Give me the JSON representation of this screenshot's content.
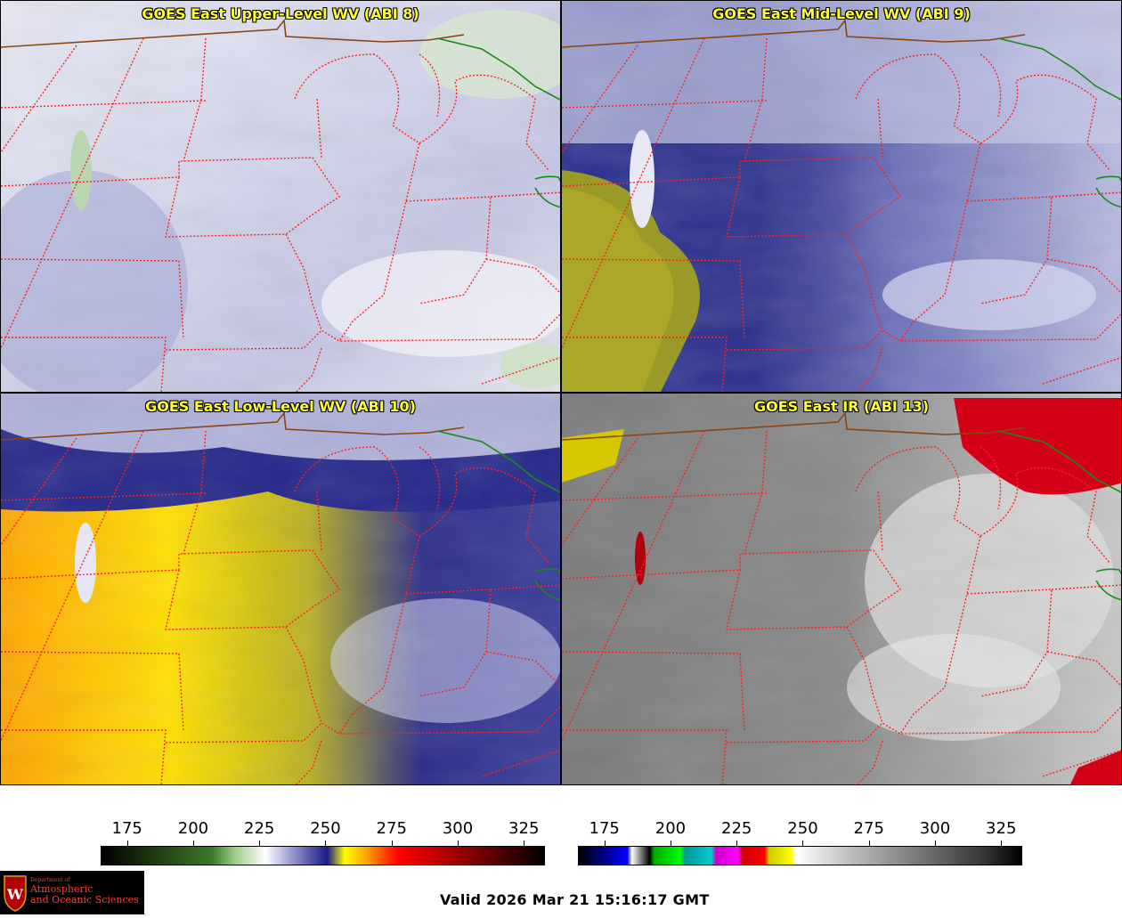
{
  "panels": [
    {
      "id": "abi8",
      "title": "GOES East Upper-Level WV (ABI 8)"
    },
    {
      "id": "abi9",
      "title": "GOES East Mid-Level WV (ABI 9)"
    },
    {
      "id": "abi10",
      "title": "GOES East Low-Level WV (ABI 10)"
    },
    {
      "id": "abi13",
      "title": "GOES East IR (ABI 13)"
    }
  ],
  "colorbars": {
    "wv": {
      "ticks": [
        "175",
        "200",
        "225",
        "250",
        "275",
        "300",
        "325"
      ]
    },
    "ir": {
      "ticks": [
        "175",
        "200",
        "225",
        "250",
        "275",
        "300",
        "325"
      ]
    }
  },
  "logo": {
    "dept": "Department of",
    "line1": "Atmospheric",
    "line2": "and Oceanic Sciences"
  },
  "valid_time": "Valid 2026 Mar 21 15:16:17 GMT",
  "colors": {
    "title": "#ffff33",
    "state_border": "#ff2020",
    "country_border": "#8b4513",
    "canada_border": "#1a8a1a"
  }
}
